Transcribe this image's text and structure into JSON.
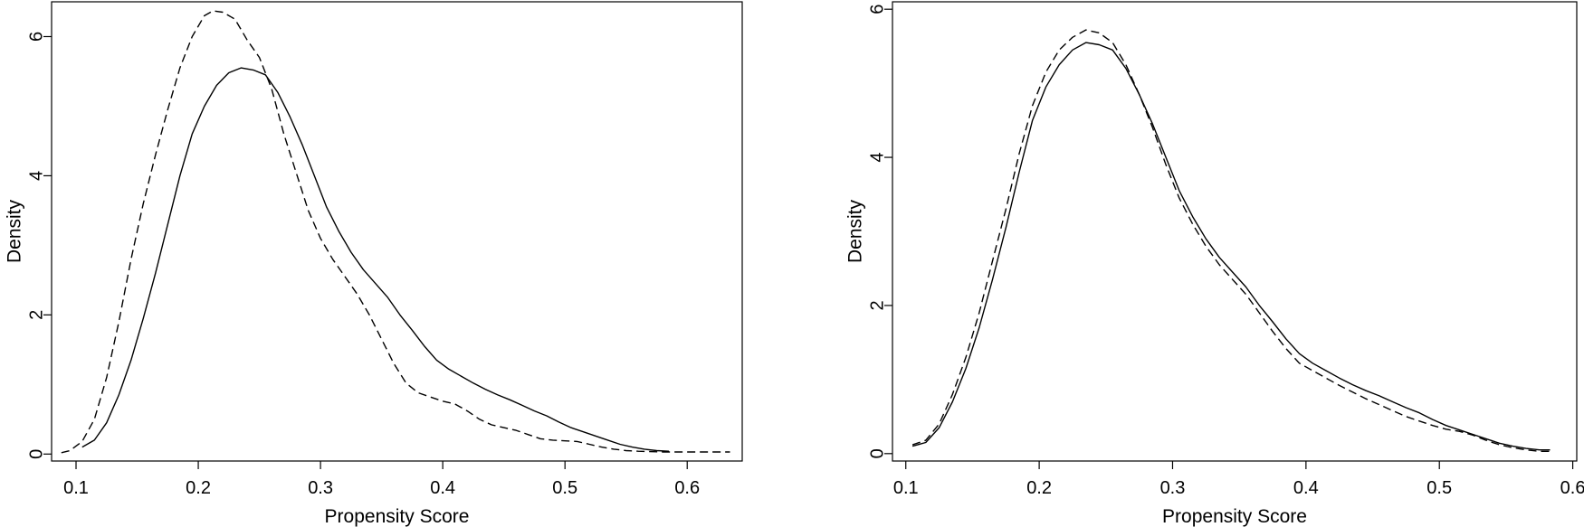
{
  "chart_data": [
    {
      "type": "line",
      "title": "",
      "xlabel": "Propensity Score",
      "ylabel": "Density",
      "xlim": [
        0.08,
        0.645
      ],
      "ylim": [
        -0.1,
        6.5
      ],
      "xticks": [
        "0.1",
        "0.2",
        "0.3",
        "0.4",
        "0.5",
        "0.6"
      ],
      "yticks": [
        "0",
        "2",
        "4",
        "6"
      ],
      "grid": false,
      "series": [
        {
          "style": "solid",
          "points": [
            [
              0.105,
              0.1
            ],
            [
              0.115,
              0.2
            ],
            [
              0.125,
              0.45
            ],
            [
              0.135,
              0.85
            ],
            [
              0.145,
              1.35
            ],
            [
              0.155,
              1.95
            ],
            [
              0.165,
              2.6
            ],
            [
              0.175,
              3.3
            ],
            [
              0.185,
              4.0
            ],
            [
              0.195,
              4.6
            ],
            [
              0.205,
              5.0
            ],
            [
              0.215,
              5.3
            ],
            [
              0.225,
              5.48
            ],
            [
              0.235,
              5.55
            ],
            [
              0.245,
              5.52
            ],
            [
              0.255,
              5.45
            ],
            [
              0.265,
              5.2
            ],
            [
              0.275,
              4.85
            ],
            [
              0.285,
              4.45
            ],
            [
              0.295,
              4.0
            ],
            [
              0.305,
              3.55
            ],
            [
              0.315,
              3.2
            ],
            [
              0.325,
              2.9
            ],
            [
              0.335,
              2.65
            ],
            [
              0.345,
              2.45
            ],
            [
              0.355,
              2.25
            ],
            [
              0.365,
              2.0
            ],
            [
              0.375,
              1.78
            ],
            [
              0.385,
              1.55
            ],
            [
              0.395,
              1.35
            ],
            [
              0.405,
              1.22
            ],
            [
              0.415,
              1.12
            ],
            [
              0.425,
              1.02
            ],
            [
              0.435,
              0.93
            ],
            [
              0.445,
              0.85
            ],
            [
              0.455,
              0.78
            ],
            [
              0.465,
              0.7
            ],
            [
              0.475,
              0.62
            ],
            [
              0.485,
              0.55
            ],
            [
              0.495,
              0.46
            ],
            [
              0.505,
              0.38
            ],
            [
              0.515,
              0.32
            ],
            [
              0.525,
              0.26
            ],
            [
              0.535,
              0.2
            ],
            [
              0.545,
              0.14
            ],
            [
              0.555,
              0.1
            ],
            [
              0.565,
              0.07
            ],
            [
              0.575,
              0.05
            ],
            [
              0.585,
              0.04
            ]
          ]
        },
        {
          "style": "dashed",
          "points": [
            [
              0.088,
              0.02
            ],
            [
              0.095,
              0.05
            ],
            [
              0.105,
              0.18
            ],
            [
              0.115,
              0.5
            ],
            [
              0.125,
              1.1
            ],
            [
              0.135,
              1.9
            ],
            [
              0.145,
              2.8
            ],
            [
              0.155,
              3.6
            ],
            [
              0.165,
              4.3
            ],
            [
              0.175,
              4.95
            ],
            [
              0.185,
              5.55
            ],
            [
              0.195,
              6.0
            ],
            [
              0.205,
              6.3
            ],
            [
              0.212,
              6.37
            ],
            [
              0.22,
              6.35
            ],
            [
              0.23,
              6.25
            ],
            [
              0.24,
              5.95
            ],
            [
              0.25,
              5.7
            ],
            [
              0.26,
              5.25
            ],
            [
              0.27,
              4.6
            ],
            [
              0.28,
              4.05
            ],
            [
              0.29,
              3.5
            ],
            [
              0.3,
              3.1
            ],
            [
              0.31,
              2.8
            ],
            [
              0.32,
              2.55
            ],
            [
              0.33,
              2.3
            ],
            [
              0.34,
              2.0
            ],
            [
              0.35,
              1.65
            ],
            [
              0.36,
              1.3
            ],
            [
              0.37,
              1.02
            ],
            [
              0.38,
              0.88
            ],
            [
              0.39,
              0.82
            ],
            [
              0.4,
              0.76
            ],
            [
              0.41,
              0.72
            ],
            [
              0.42,
              0.62
            ],
            [
              0.43,
              0.5
            ],
            [
              0.44,
              0.42
            ],
            [
              0.45,
              0.38
            ],
            [
              0.46,
              0.34
            ],
            [
              0.47,
              0.28
            ],
            [
              0.48,
              0.22
            ],
            [
              0.49,
              0.2
            ],
            [
              0.5,
              0.19
            ],
            [
              0.51,
              0.18
            ],
            [
              0.52,
              0.14
            ],
            [
              0.53,
              0.1
            ],
            [
              0.54,
              0.07
            ],
            [
              0.55,
              0.05
            ],
            [
              0.56,
              0.04
            ],
            [
              0.58,
              0.03
            ],
            [
              0.6,
              0.03
            ],
            [
              0.62,
              0.03
            ],
            [
              0.635,
              0.03
            ]
          ]
        }
      ]
    },
    {
      "type": "line",
      "title": "",
      "xlabel": "Propensity Score",
      "ylabel": "Density",
      "xlim": [
        0.09,
        0.603
      ],
      "ylim": [
        -0.1,
        6.1
      ],
      "xticks": [
        "0.1",
        "0.2",
        "0.3",
        "0.4",
        "0.5",
        "0.6"
      ],
      "yticks": [
        "0",
        "2",
        "4",
        "6"
      ],
      "grid": false,
      "series": [
        {
          "style": "solid",
          "points": [
            [
              0.105,
              0.1
            ],
            [
              0.115,
              0.15
            ],
            [
              0.125,
              0.35
            ],
            [
              0.135,
              0.7
            ],
            [
              0.145,
              1.15
            ],
            [
              0.155,
              1.7
            ],
            [
              0.165,
              2.35
            ],
            [
              0.175,
              3.05
            ],
            [
              0.185,
              3.8
            ],
            [
              0.195,
              4.5
            ],
            [
              0.205,
              4.95
            ],
            [
              0.215,
              5.25
            ],
            [
              0.225,
              5.45
            ],
            [
              0.235,
              5.55
            ],
            [
              0.245,
              5.52
            ],
            [
              0.255,
              5.45
            ],
            [
              0.265,
              5.2
            ],
            [
              0.275,
              4.85
            ],
            [
              0.285,
              4.45
            ],
            [
              0.295,
              4.0
            ],
            [
              0.305,
              3.55
            ],
            [
              0.315,
              3.2
            ],
            [
              0.325,
              2.9
            ],
            [
              0.335,
              2.65
            ],
            [
              0.345,
              2.45
            ],
            [
              0.355,
              2.25
            ],
            [
              0.365,
              2.0
            ],
            [
              0.375,
              1.78
            ],
            [
              0.385,
              1.55
            ],
            [
              0.395,
              1.35
            ],
            [
              0.405,
              1.22
            ],
            [
              0.415,
              1.12
            ],
            [
              0.425,
              1.02
            ],
            [
              0.435,
              0.93
            ],
            [
              0.445,
              0.85
            ],
            [
              0.455,
              0.78
            ],
            [
              0.465,
              0.7
            ],
            [
              0.475,
              0.62
            ],
            [
              0.485,
              0.55
            ],
            [
              0.495,
              0.46
            ],
            [
              0.505,
              0.38
            ],
            [
              0.515,
              0.32
            ],
            [
              0.525,
              0.26
            ],
            [
              0.535,
              0.2
            ],
            [
              0.545,
              0.14
            ],
            [
              0.555,
              0.1
            ],
            [
              0.565,
              0.07
            ],
            [
              0.575,
              0.05
            ],
            [
              0.583,
              0.05
            ]
          ]
        },
        {
          "style": "dashed",
          "points": [
            [
              0.105,
              0.12
            ],
            [
              0.115,
              0.18
            ],
            [
              0.125,
              0.4
            ],
            [
              0.135,
              0.8
            ],
            [
              0.145,
              1.3
            ],
            [
              0.155,
              1.9
            ],
            [
              0.165,
              2.6
            ],
            [
              0.175,
              3.3
            ],
            [
              0.185,
              4.05
            ],
            [
              0.195,
              4.7
            ],
            [
              0.205,
              5.15
            ],
            [
              0.215,
              5.45
            ],
            [
              0.225,
              5.62
            ],
            [
              0.235,
              5.72
            ],
            [
              0.245,
              5.68
            ],
            [
              0.255,
              5.55
            ],
            [
              0.265,
              5.25
            ],
            [
              0.275,
              4.85
            ],
            [
              0.285,
              4.4
            ],
            [
              0.295,
              3.9
            ],
            [
              0.305,
              3.45
            ],
            [
              0.315,
              3.1
            ],
            [
              0.325,
              2.8
            ],
            [
              0.335,
              2.55
            ],
            [
              0.345,
              2.35
            ],
            [
              0.355,
              2.15
            ],
            [
              0.365,
              1.9
            ],
            [
              0.375,
              1.65
            ],
            [
              0.385,
              1.42
            ],
            [
              0.395,
              1.22
            ],
            [
              0.405,
              1.12
            ],
            [
              0.415,
              1.02
            ],
            [
              0.425,
              0.92
            ],
            [
              0.435,
              0.83
            ],
            [
              0.445,
              0.74
            ],
            [
              0.455,
              0.66
            ],
            [
              0.465,
              0.58
            ],
            [
              0.475,
              0.5
            ],
            [
              0.485,
              0.44
            ],
            [
              0.495,
              0.38
            ],
            [
              0.505,
              0.33
            ],
            [
              0.515,
              0.3
            ],
            [
              0.525,
              0.25
            ],
            [
              0.535,
              0.18
            ],
            [
              0.545,
              0.12
            ],
            [
              0.555,
              0.08
            ],
            [
              0.565,
              0.05
            ],
            [
              0.575,
              0.03
            ],
            [
              0.583,
              0.03
            ]
          ]
        }
      ]
    }
  ]
}
